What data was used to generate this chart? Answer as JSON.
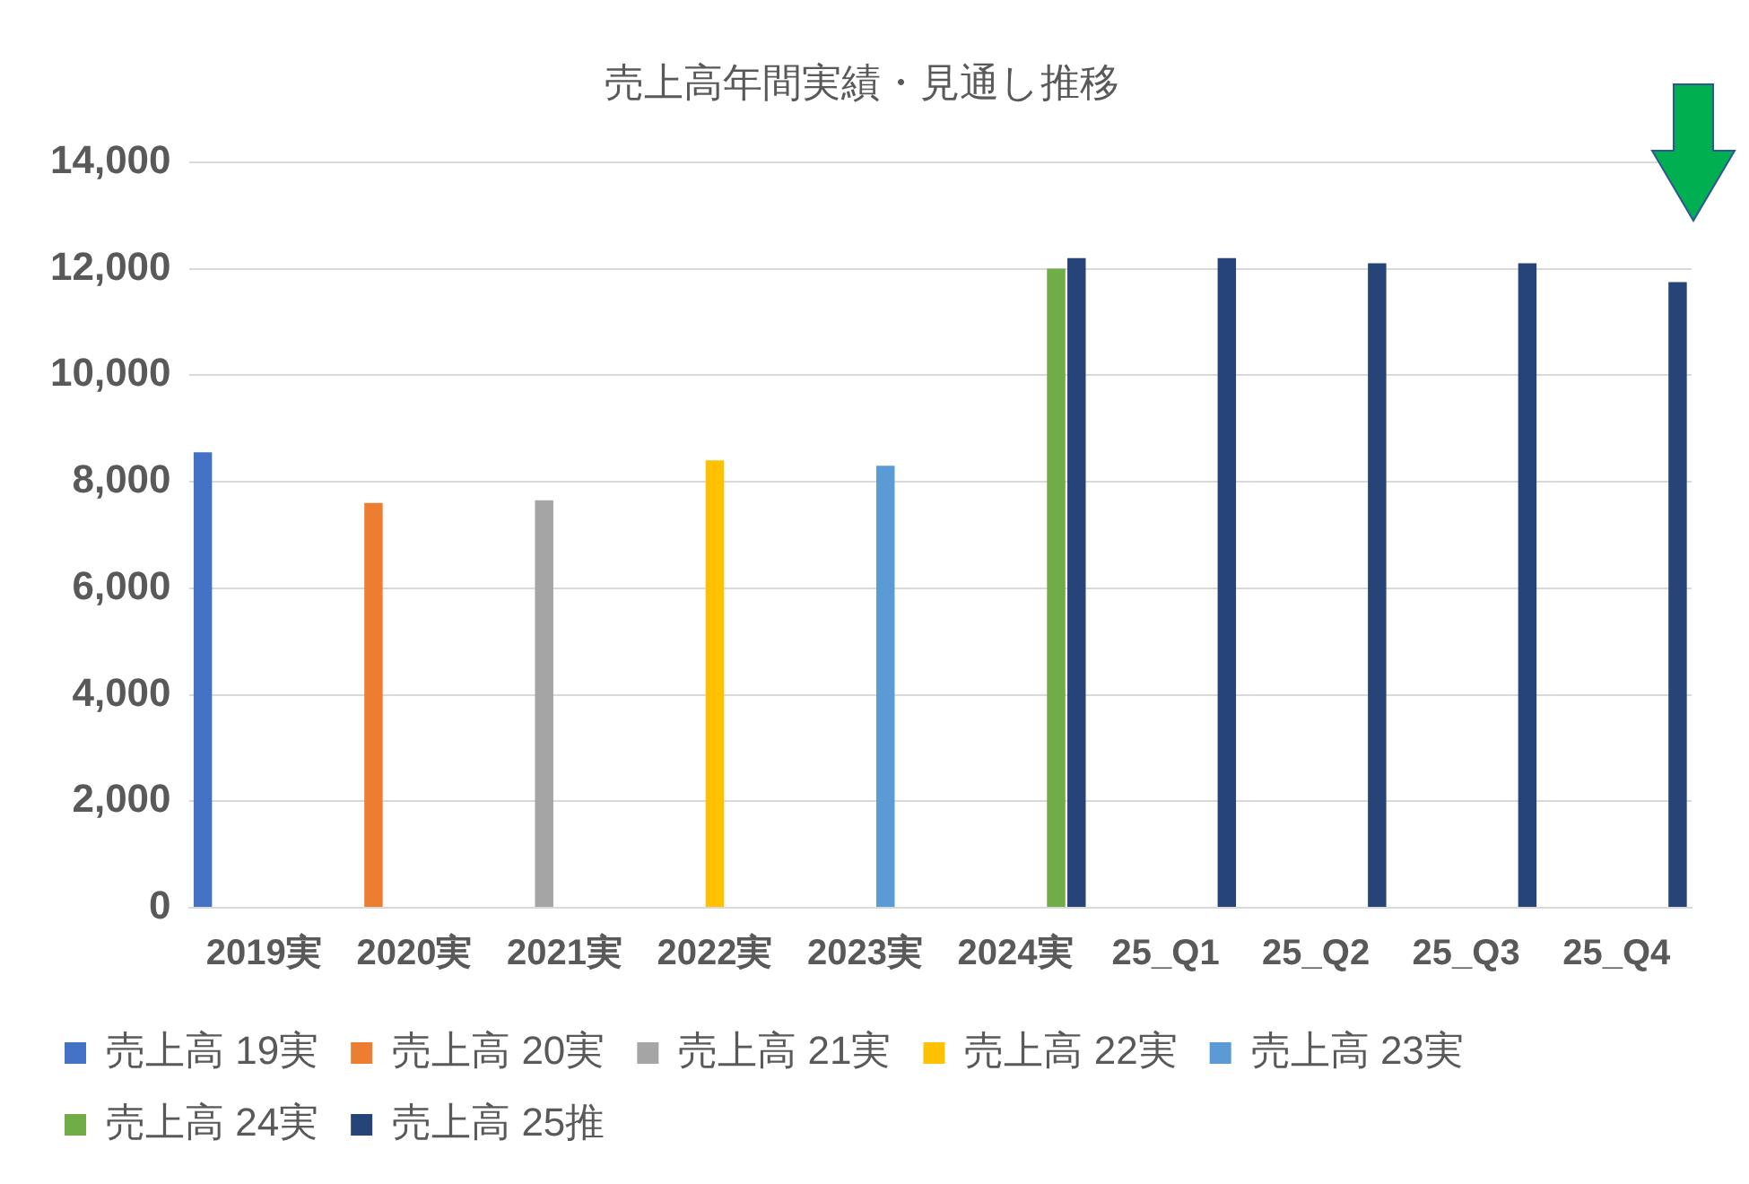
{
  "chart_data": {
    "type": "bar",
    "title": "売上高年間実績・見通し推移",
    "categories": [
      "2019実",
      "2020実",
      "2021実",
      "2022実",
      "2023実",
      "2024実",
      "25_Q1",
      "25_Q2",
      "25_Q3",
      "25_Q4"
    ],
    "series": [
      {
        "name": "売上高 19実",
        "color": "#4472c4",
        "values": [
          8550,
          null,
          null,
          null,
          null,
          null,
          null,
          null,
          null,
          null
        ]
      },
      {
        "name": "売上高 20実",
        "color": "#ed7d31",
        "values": [
          null,
          7600,
          null,
          null,
          null,
          null,
          null,
          null,
          null,
          null
        ]
      },
      {
        "name": "売上高 21実",
        "color": "#a5a5a5",
        "values": [
          null,
          null,
          7650,
          null,
          null,
          null,
          null,
          null,
          null,
          null
        ]
      },
      {
        "name": "売上高 22実",
        "color": "#ffc000",
        "values": [
          null,
          null,
          null,
          8400,
          null,
          null,
          null,
          null,
          null,
          null
        ]
      },
      {
        "name": "売上高 23実",
        "color": "#5b9bd5",
        "values": [
          null,
          null,
          null,
          null,
          8300,
          null,
          null,
          null,
          null,
          null
        ]
      },
      {
        "name": "売上高 24実",
        "color": "#70ad47",
        "values": [
          null,
          null,
          null,
          null,
          null,
          12000,
          null,
          null,
          null,
          null
        ]
      },
      {
        "name": "売上高 25推",
        "color": "#264478",
        "values": [
          null,
          null,
          null,
          null,
          null,
          12200,
          12200,
          12100,
          12100,
          11750
        ]
      }
    ],
    "ylim": [
      0,
      14000
    ],
    "yticks": [
      0,
      {
        "value": 2000,
        "label": "2,000"
      },
      {
        "value": 4000,
        "label": "4,000"
      },
      {
        "value": 6000,
        "label": "6,000"
      },
      {
        "value": 8000,
        "label": "8,000"
      },
      {
        "value": 10000,
        "label": "10,000"
      },
      {
        "value": 12000,
        "label": "12,000"
      },
      {
        "value": 14000,
        "label": "14,000"
      }
    ],
    "grid": "y",
    "legend": "bottom"
  }
}
